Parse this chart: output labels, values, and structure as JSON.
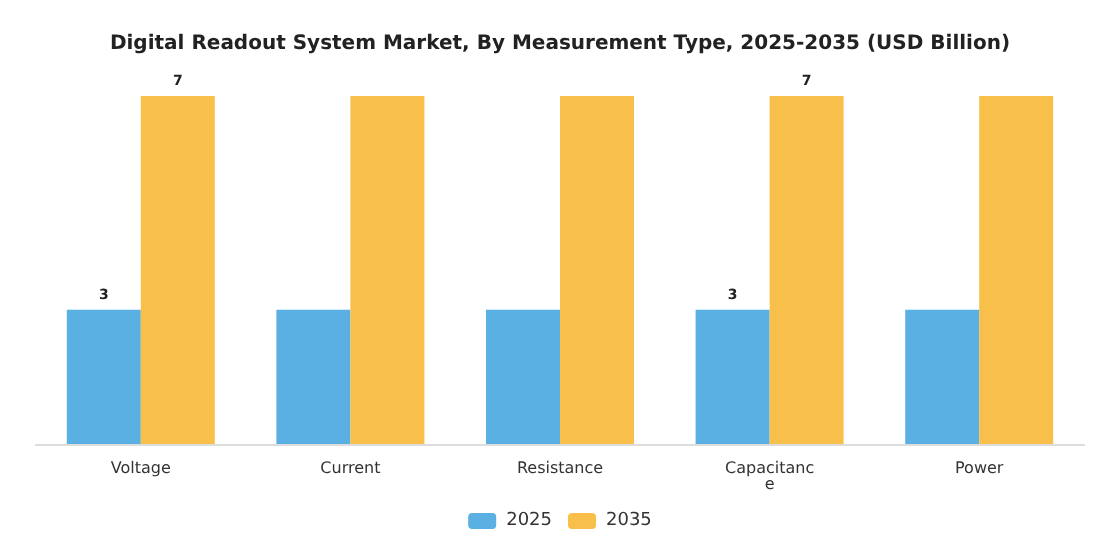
{
  "chart_data": {
    "type": "bar",
    "title": "Digital Readout System Market, By Measurement Type, 2025-2035 (USD Billion)",
    "categories": [
      "Voltage",
      "Current",
      "Resistance",
      "Capacitance",
      "Power"
    ],
    "series": [
      {
        "name": "2025",
        "color": "#5aafe3",
        "values": [
          2.7,
          2.7,
          2.7,
          2.7,
          2.7
        ],
        "value_labels": [
          "3",
          null,
          null,
          "3",
          null
        ]
      },
      {
        "name": "2035",
        "color": "#f8c04a",
        "values": [
          7.0,
          7.0,
          7.0,
          7.0,
          7.0
        ],
        "value_labels": [
          "7",
          null,
          null,
          "7",
          null
        ]
      }
    ],
    "legend": "bottom",
    "tick_labels": "x"
  }
}
